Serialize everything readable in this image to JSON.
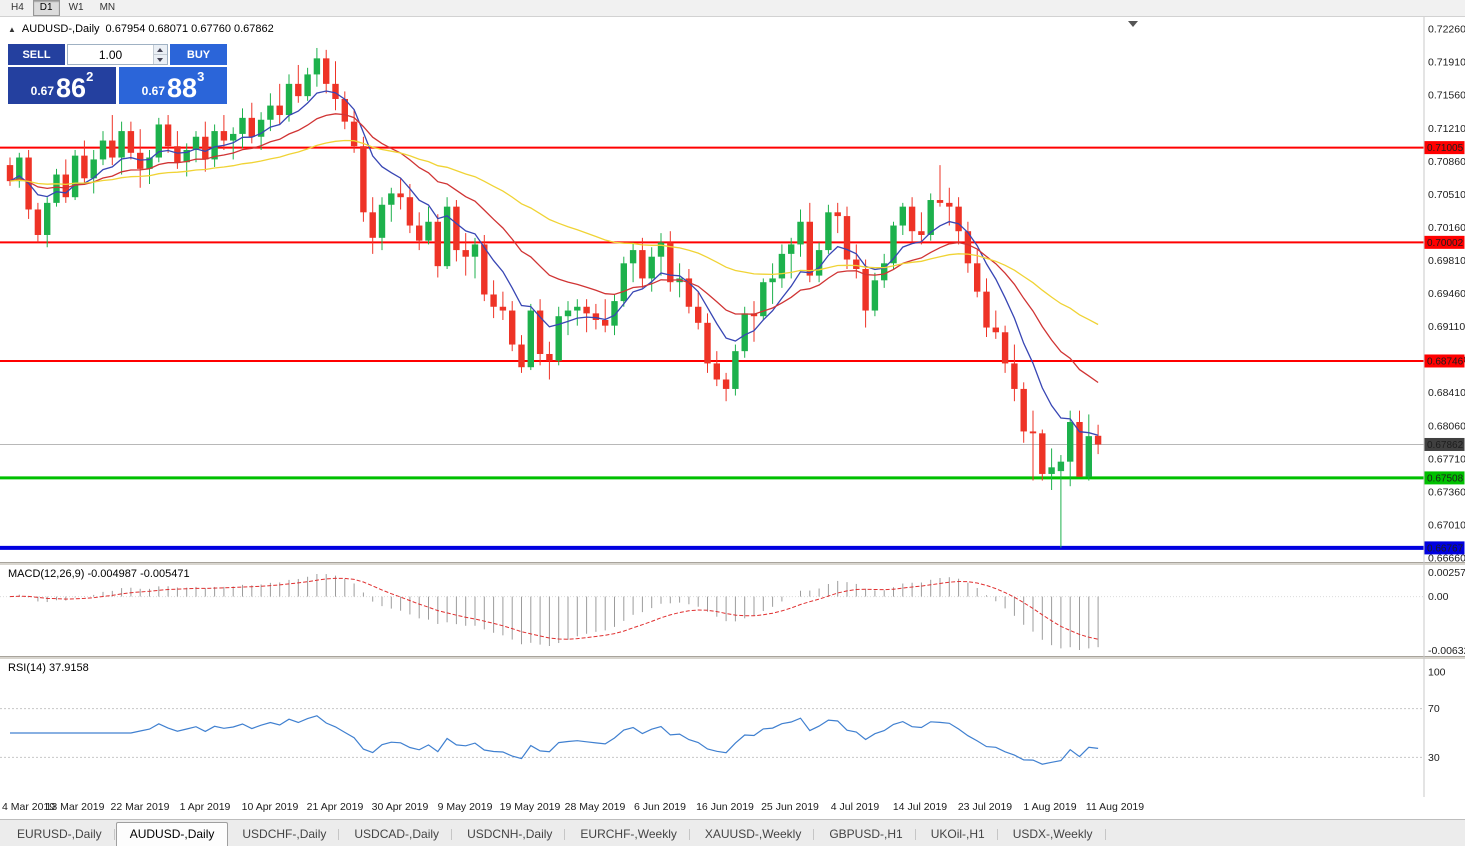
{
  "toolbar": {
    "timeframes": [
      "H4",
      "D1",
      "W1",
      "MN"
    ],
    "active_timeframe": "D1"
  },
  "chart_header": {
    "symbol_title": "AUDUSD-,Daily",
    "ohlc": "0.67954 0.68071 0.67760 0.67862"
  },
  "trade_panel": {
    "sell_label": "SELL",
    "buy_label": "BUY",
    "volume": "1.00",
    "sell_price": {
      "prefix": "0.67",
      "big": "86",
      "sup": "2"
    },
    "buy_price": {
      "prefix": "0.67",
      "big": "88",
      "sup": "3"
    },
    "sell_color": "#24409f",
    "buy_color": "#2b65d9"
  },
  "chart_data": {
    "type": "candlestick",
    "symbol": "AUDUSD-",
    "timeframe": "Daily",
    "last_bar": {
      "open": "0.67954",
      "high": "0.68071",
      "low": "0.67760",
      "close": "0.67862"
    },
    "candle_colors": {
      "up": "#1db14c",
      "down": "#ee3326"
    },
    "y_ticks": [
      "0.72260",
      "0.71910",
      "0.71560",
      "0.71210",
      "0.70860",
      "0.70510",
      "0.70160",
      "0.69810",
      "0.69460",
      "0.69110",
      "0.68760",
      "0.68410",
      "0.68060",
      "0.67710",
      "0.67360",
      "0.67010",
      "0.66660"
    ],
    "x_labels": [
      "4 Mar 2019",
      "13 Mar 2019",
      "22 Mar 2019",
      "1 Apr 2019",
      "10 Apr 2019",
      "21 Apr 2019",
      "30 Apr 2019",
      "9 May 2019",
      "19 May 2019",
      "28 May 2019",
      "6 Jun 2019",
      "16 Jun 2019",
      "25 Jun 2019",
      "4 Jul 2019",
      "14 Jul 2019",
      "23 Jul 2019",
      "1 Aug 2019",
      "11 Aug 2019"
    ],
    "overlays": {
      "moving_averages": [
        {
          "period": 8,
          "color": "#3846b4"
        },
        {
          "period": 20,
          "color": "#d03434"
        },
        {
          "period": 50,
          "color": "#f0d335"
        }
      ],
      "hlines": [
        {
          "price": 0.71005,
          "label": "0.71005",
          "color": "#ff0000",
          "width": 2
        },
        {
          "price": 0.70002,
          "label": "0.70002",
          "color": "#ff0000",
          "width": 2
        },
        {
          "price": 0.68746,
          "label": "0.68746",
          "color": "#ff0000",
          "width": 2
        },
        {
          "price": 0.67508,
          "label": "0.67508",
          "color": "#00c000",
          "width": 3
        },
        {
          "price": 0.66767,
          "label": "0.66767",
          "color": "#0000e0",
          "width": 4
        }
      ],
      "current_price": {
        "value": 0.67862,
        "label": "0.67862",
        "badge_color": "#404040",
        "line_color": "#b8b8b8"
      }
    },
    "indicators": [
      {
        "name": "MACD",
        "label": "MACD(12,26,9) -0.004987 -0.005471",
        "params": {
          "fast": 12,
          "slow": 26,
          "signal": 9
        },
        "axis_labels": [
          "0.002574",
          "0.00",
          "-0.006326"
        ],
        "histogram_color": "#9c9c9c",
        "signal_color": "#e03030"
      },
      {
        "name": "RSI",
        "label": "RSI(14) 37.9158",
        "period": 14,
        "axis_labels": [
          "100",
          "70",
          "30"
        ],
        "levels": [
          70,
          30
        ],
        "line_color": "#4080d0"
      }
    ],
    "candles": [
      [
        0.7082,
        0.709,
        0.706,
        0.7065
      ],
      [
        0.7065,
        0.7095,
        0.7058,
        0.709
      ],
      [
        0.709,
        0.7098,
        0.7025,
        0.7035
      ],
      [
        0.7035,
        0.7042,
        0.7,
        0.7008
      ],
      [
        0.7008,
        0.7048,
        0.6995,
        0.7042
      ],
      [
        0.7042,
        0.7078,
        0.7038,
        0.7072
      ],
      [
        0.7072,
        0.7088,
        0.7042,
        0.7048
      ],
      [
        0.7048,
        0.7098,
        0.7045,
        0.7092
      ],
      [
        0.7092,
        0.7108,
        0.7062,
        0.7068
      ],
      [
        0.7068,
        0.7098,
        0.7052,
        0.7088
      ],
      [
        0.7088,
        0.7118,
        0.7082,
        0.7108
      ],
      [
        0.7108,
        0.7135,
        0.7082,
        0.709
      ],
      [
        0.709,
        0.7128,
        0.7072,
        0.7118
      ],
      [
        0.7118,
        0.7128,
        0.7088,
        0.7095
      ],
      [
        0.7095,
        0.712,
        0.7058,
        0.7078
      ],
      [
        0.7078,
        0.7098,
        0.7062,
        0.709
      ],
      [
        0.709,
        0.7132,
        0.7085,
        0.7125
      ],
      [
        0.7125,
        0.7135,
        0.7095,
        0.7102
      ],
      [
        0.7102,
        0.7118,
        0.7078,
        0.7085
      ],
      [
        0.7085,
        0.7105,
        0.707,
        0.7098
      ],
      [
        0.7098,
        0.7118,
        0.7085,
        0.7112
      ],
      [
        0.7112,
        0.7128,
        0.7075,
        0.7088
      ],
      [
        0.7088,
        0.7125,
        0.708,
        0.7118
      ],
      [
        0.7118,
        0.7135,
        0.7098,
        0.7108
      ],
      [
        0.7108,
        0.7122,
        0.7088,
        0.7115
      ],
      [
        0.7115,
        0.7142,
        0.71,
        0.7132
      ],
      [
        0.7132,
        0.7148,
        0.7105,
        0.7112
      ],
      [
        0.7112,
        0.7138,
        0.7098,
        0.713
      ],
      [
        0.713,
        0.7158,
        0.7118,
        0.7145
      ],
      [
        0.7145,
        0.7168,
        0.7125,
        0.7135
      ],
      [
        0.7135,
        0.7178,
        0.7128,
        0.7168
      ],
      [
        0.7168,
        0.7188,
        0.7148,
        0.7155
      ],
      [
        0.7155,
        0.7185,
        0.715,
        0.7178
      ],
      [
        0.7178,
        0.7206,
        0.7165,
        0.7195
      ],
      [
        0.7195,
        0.7204,
        0.7158,
        0.7168
      ],
      [
        0.7168,
        0.7192,
        0.714,
        0.7152
      ],
      [
        0.7152,
        0.716,
        0.712,
        0.7128
      ],
      [
        0.7128,
        0.714,
        0.7095,
        0.7102
      ],
      [
        0.7102,
        0.7112,
        0.7022,
        0.7032
      ],
      [
        0.7032,
        0.7048,
        0.6988,
        0.7005
      ],
      [
        0.7005,
        0.7048,
        0.6992,
        0.704
      ],
      [
        0.704,
        0.7058,
        0.7022,
        0.7052
      ],
      [
        0.7052,
        0.7068,
        0.7035,
        0.7048
      ],
      [
        0.7048,
        0.7062,
        0.701,
        0.7018
      ],
      [
        0.7018,
        0.7032,
        0.6992,
        0.7002
      ],
      [
        0.7002,
        0.7038,
        0.6998,
        0.7022
      ],
      [
        0.7022,
        0.703,
        0.6963,
        0.6975
      ],
      [
        0.6975,
        0.7048,
        0.6972,
        0.7038
      ],
      [
        0.7038,
        0.7045,
        0.698,
        0.6992
      ],
      [
        0.6992,
        0.701,
        0.6965,
        0.6985
      ],
      [
        0.6985,
        0.7005,
        0.6962,
        0.6998
      ],
      [
        0.6998,
        0.7008,
        0.6938,
        0.6945
      ],
      [
        0.6945,
        0.696,
        0.692,
        0.6932
      ],
      [
        0.6932,
        0.6948,
        0.6918,
        0.6928
      ],
      [
        0.6928,
        0.6938,
        0.6885,
        0.6892
      ],
      [
        0.6892,
        0.6902,
        0.6862,
        0.6868
      ],
      [
        0.6868,
        0.6935,
        0.6865,
        0.6928
      ],
      [
        0.6928,
        0.694,
        0.687,
        0.6882
      ],
      [
        0.6882,
        0.6895,
        0.6855,
        0.6875
      ],
      [
        0.6875,
        0.6932,
        0.687,
        0.6922
      ],
      [
        0.6922,
        0.6938,
        0.6902,
        0.6928
      ],
      [
        0.6928,
        0.694,
        0.6912,
        0.6932
      ],
      [
        0.6932,
        0.694,
        0.6905,
        0.6925
      ],
      [
        0.6925,
        0.6935,
        0.6908,
        0.6918
      ],
      [
        0.6918,
        0.694,
        0.6905,
        0.6912
      ],
      [
        0.6912,
        0.6945,
        0.6902,
        0.6938
      ],
      [
        0.6938,
        0.6985,
        0.6932,
        0.6978
      ],
      [
        0.6978,
        0.7,
        0.6958,
        0.6992
      ],
      [
        0.6992,
        0.7005,
        0.6952,
        0.6962
      ],
      [
        0.6962,
        0.6995,
        0.6948,
        0.6985
      ],
      [
        0.6985,
        0.701,
        0.6965,
        0.7
      ],
      [
        0.7,
        0.7012,
        0.6948,
        0.6958
      ],
      [
        0.6958,
        0.6978,
        0.6942,
        0.6962
      ],
      [
        0.6962,
        0.6972,
        0.6925,
        0.6932
      ],
      [
        0.6932,
        0.6948,
        0.6908,
        0.6915
      ],
      [
        0.6915,
        0.6925,
        0.6862,
        0.6872
      ],
      [
        0.6872,
        0.6885,
        0.6848,
        0.6855
      ],
      [
        0.6855,
        0.6862,
        0.6832,
        0.6845
      ],
      [
        0.6845,
        0.6892,
        0.6838,
        0.6885
      ],
      [
        0.6885,
        0.6932,
        0.6878,
        0.6925
      ],
      [
        0.6925,
        0.6938,
        0.6895,
        0.6922
      ],
      [
        0.6922,
        0.6962,
        0.6918,
        0.6958
      ],
      [
        0.6958,
        0.6978,
        0.6935,
        0.6962
      ],
      [
        0.6962,
        0.6998,
        0.6952,
        0.6988
      ],
      [
        0.6988,
        0.7005,
        0.6962,
        0.6998
      ],
      [
        0.6998,
        0.7035,
        0.6985,
        0.7022
      ],
      [
        0.7022,
        0.7042,
        0.6958,
        0.6965
      ],
      [
        0.6965,
        0.7,
        0.6958,
        0.6992
      ],
      [
        0.6992,
        0.704,
        0.6988,
        0.7032
      ],
      [
        0.7032,
        0.7042,
        0.701,
        0.7028
      ],
      [
        0.7028,
        0.7038,
        0.6972,
        0.6982
      ],
      [
        0.6982,
        0.6998,
        0.6962,
        0.6972
      ],
      [
        0.6972,
        0.6982,
        0.691,
        0.6928
      ],
      [
        0.6928,
        0.6968,
        0.6922,
        0.696
      ],
      [
        0.696,
        0.6988,
        0.6952,
        0.6978
      ],
      [
        0.6978,
        0.7022,
        0.6972,
        0.7018
      ],
      [
        0.7018,
        0.7042,
        0.7008,
        0.7038
      ],
      [
        0.7038,
        0.7048,
        0.7,
        0.7012
      ],
      [
        0.7012,
        0.7032,
        0.6998,
        0.7008
      ],
      [
        0.7008,
        0.7052,
        0.7002,
        0.7045
      ],
      [
        0.7045,
        0.7082,
        0.7038,
        0.7042
      ],
      [
        0.7042,
        0.7058,
        0.7018,
        0.7038
      ],
      [
        0.7038,
        0.7048,
        0.6998,
        0.7012
      ],
      [
        0.7012,
        0.7022,
        0.6968,
        0.6978
      ],
      [
        0.6978,
        0.6992,
        0.6942,
        0.6948
      ],
      [
        0.6948,
        0.6962,
        0.69,
        0.691
      ],
      [
        0.691,
        0.6928,
        0.6898,
        0.6905
      ],
      [
        0.6905,
        0.6912,
        0.6862,
        0.6872
      ],
      [
        0.6872,
        0.6892,
        0.6832,
        0.6845
      ],
      [
        0.6845,
        0.6852,
        0.6788,
        0.68
      ],
      [
        0.68,
        0.6822,
        0.6748,
        0.6798
      ],
      [
        0.6798,
        0.6802,
        0.6748,
        0.6755
      ],
      [
        0.6755,
        0.6782,
        0.6738,
        0.6762
      ],
      [
        0.6758,
        0.6775,
        0.6677,
        0.6768
      ],
      [
        0.6768,
        0.6822,
        0.6742,
        0.681
      ],
      [
        0.681,
        0.6822,
        0.6782,
        0.6752
      ],
      [
        0.6752,
        0.6818,
        0.6748,
        0.6795
      ],
      [
        0.67954,
        0.68071,
        0.6776,
        0.67862
      ]
    ]
  },
  "tabs": {
    "items": [
      "EURUSD-,Daily",
      "AUDUSD-,Daily",
      "USDCHF-,Daily",
      "USDCAD-,Daily",
      "USDCNH-,Daily",
      "EURCHF-,Weekly",
      "XAUUSD-,Weekly",
      "GBPUSD-,H1",
      "UKOil-,H1",
      "USDX-,Weekly"
    ],
    "active": "AUDUSD-,Daily"
  }
}
